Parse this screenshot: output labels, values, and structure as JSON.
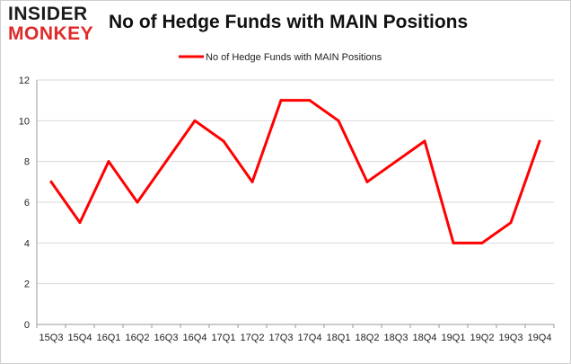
{
  "logo": {
    "line1": "INSIDER",
    "line2": "MONKEY"
  },
  "chart_data": {
    "type": "line",
    "title": "No of Hedge Funds with MAIN Positions",
    "categories": [
      "15Q3",
      "15Q4",
      "16Q1",
      "16Q2",
      "16Q3",
      "16Q4",
      "17Q1",
      "17Q2",
      "17Q3",
      "17Q4",
      "18Q1",
      "18Q2",
      "18Q3",
      "18Q4",
      "19Q1",
      "19Q2",
      "19Q3",
      "19Q4"
    ],
    "series": [
      {
        "name": "No of Hedge Funds with MAIN Positions",
        "values": [
          7,
          5,
          8,
          6,
          8,
          10,
          9,
          7,
          11,
          11,
          10,
          7,
          8,
          9,
          4,
          4,
          5,
          9
        ],
        "color": "#ff0000"
      }
    ],
    "yticks": [
      0,
      2,
      4,
      6,
      8,
      10,
      12
    ],
    "ylim": [
      0,
      12
    ],
    "xlabel": "",
    "ylabel": "",
    "grid": "horizontal",
    "legend": "top-center",
    "gridColor": "#d9d9d9",
    "axisColor": "#999999"
  }
}
